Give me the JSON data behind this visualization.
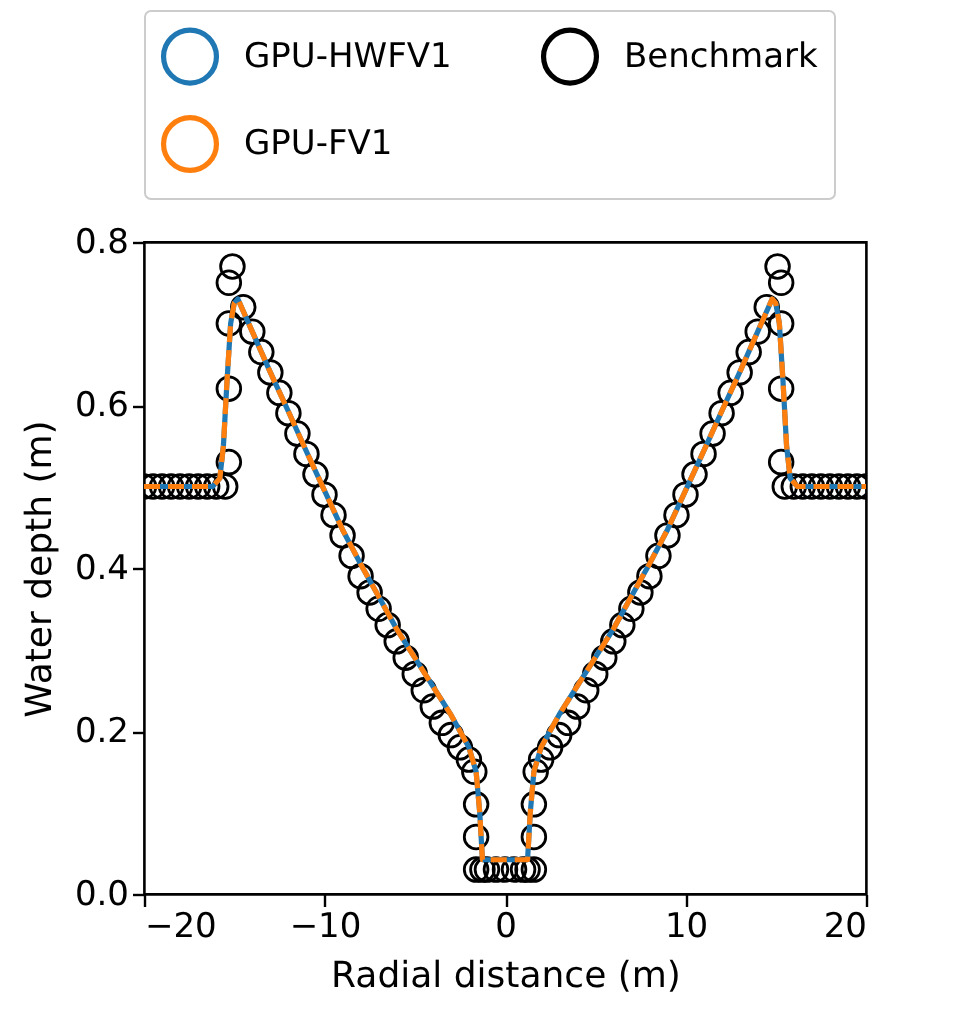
{
  "chart_data": {
    "type": "line",
    "xlabel": "Radial distance (m)",
    "ylabel": "Water depth (m)",
    "xlim": [
      -20,
      20
    ],
    "ylim": [
      0,
      0.8
    ],
    "xticks": [
      -20,
      -10,
      0,
      10,
      20
    ],
    "yticks": [
      {
        "value": 0,
        "label": "0.0"
      },
      {
        "value": 0.2,
        "label": "0.2"
      },
      {
        "value": 0.4,
        "label": "0.4"
      },
      {
        "value": 0.6,
        "label": "0.6"
      },
      {
        "value": 0.8,
        "label": "0.8"
      }
    ],
    "grid": false,
    "legend": "top",
    "series": [
      {
        "name": "GPU-HWFV1",
        "type": "line",
        "color": "#1f77b4",
        "line_style": "solid",
        "x": [
          -20,
          -16.2,
          -15.8,
          -15.6,
          -15.4,
          -15.2,
          -15,
          -14.8,
          -14,
          -13,
          -12,
          -11,
          -10,
          -9,
          -8,
          -7,
          -6,
          -5,
          -4,
          -3,
          -2.5,
          -2,
          -1.6,
          -1.4,
          -1.25,
          -1.1,
          1.1,
          1.25,
          1.4,
          1.6,
          2,
          2.5,
          3,
          4,
          5,
          6,
          7,
          8,
          9,
          10,
          11,
          12,
          13,
          14,
          14.8,
          15,
          15.2,
          15.4,
          15.6,
          15.8,
          16.2,
          20
        ],
        "values": [
          0.5,
          0.5,
          0.51,
          0.55,
          0.63,
          0.7,
          0.725,
          0.73,
          0.69,
          0.64,
          0.592,
          0.543,
          0.495,
          0.447,
          0.405,
          0.365,
          0.325,
          0.29,
          0.255,
          0.22,
          0.2,
          0.18,
          0.15,
          0.1,
          0.042,
          0.042,
          0.042,
          0.042,
          0.1,
          0.15,
          0.18,
          0.2,
          0.22,
          0.255,
          0.29,
          0.325,
          0.365,
          0.405,
          0.447,
          0.495,
          0.543,
          0.592,
          0.64,
          0.69,
          0.73,
          0.725,
          0.7,
          0.63,
          0.55,
          0.51,
          0.5,
          0.5
        ]
      },
      {
        "name": "GPU-FV1",
        "type": "line",
        "color": "#ff7f0e",
        "line_style": "dashed",
        "x": [
          -20,
          -16.2,
          -15.8,
          -15.6,
          -15.4,
          -15.2,
          -15,
          -14.8,
          -14,
          -13,
          -12,
          -11,
          -10,
          -9,
          -8,
          -7,
          -6,
          -5,
          -4,
          -3,
          -2.5,
          -2,
          -1.6,
          -1.4,
          -1.25,
          -1.1,
          1.1,
          1.25,
          1.4,
          1.6,
          2,
          2.5,
          3,
          4,
          5,
          6,
          7,
          8,
          9,
          10,
          11,
          12,
          13,
          14,
          14.8,
          15,
          15.2,
          15.4,
          15.6,
          15.8,
          16.2,
          20
        ],
        "values": [
          0.5,
          0.5,
          0.51,
          0.55,
          0.63,
          0.7,
          0.725,
          0.73,
          0.69,
          0.64,
          0.592,
          0.543,
          0.495,
          0.447,
          0.405,
          0.365,
          0.325,
          0.29,
          0.255,
          0.22,
          0.2,
          0.18,
          0.15,
          0.1,
          0.042,
          0.042,
          0.042,
          0.042,
          0.1,
          0.15,
          0.18,
          0.2,
          0.22,
          0.255,
          0.29,
          0.325,
          0.365,
          0.405,
          0.447,
          0.495,
          0.543,
          0.592,
          0.64,
          0.69,
          0.73,
          0.725,
          0.7,
          0.63,
          0.55,
          0.51,
          0.5,
          0.5
        ]
      },
      {
        "name": "Benchmark",
        "type": "scatter",
        "color": "#000000",
        "marker": "circle",
        "x": [
          -20,
          -19.5,
          -19,
          -18.5,
          -18,
          -17.5,
          -17,
          -16.5,
          -16,
          -15.5,
          -15.3,
          -15.3,
          -15.3,
          -15.3,
          -15.1,
          -14.5,
          -14,
          -13.5,
          -13,
          -12.5,
          -12,
          -11.5,
          -11,
          -10.5,
          -10,
          -9.5,
          -9,
          -8.5,
          -8,
          -7.5,
          -7,
          -6.5,
          -6,
          -5.5,
          -5,
          -4.5,
          -4,
          -3.5,
          -3,
          -2.5,
          -2,
          -1.7,
          -1.6,
          -1.6,
          -1.6,
          -1.25,
          -1,
          -0.5,
          0,
          0.5,
          1,
          1.25,
          1.6,
          1.6,
          1.6,
          1.7,
          2,
          2.5,
          3,
          3.5,
          4,
          4.5,
          5,
          5.5,
          6,
          6.5,
          7,
          7.5,
          8,
          8.5,
          9,
          9.5,
          10,
          10.5,
          11,
          11.5,
          12,
          12.5,
          13,
          13.5,
          14,
          14.5,
          15.1,
          15.3,
          15.3,
          15.3,
          15.3,
          15.5,
          16,
          16.5,
          17,
          17.5,
          18,
          18.5,
          19,
          19.5,
          20
        ],
        "values": [
          0.5,
          0.5,
          0.5,
          0.5,
          0.5,
          0.5,
          0.5,
          0.5,
          0.5,
          0.5,
          0.53,
          0.62,
          0.7,
          0.75,
          0.77,
          0.72,
          0.69,
          0.665,
          0.64,
          0.615,
          0.59,
          0.565,
          0.54,
          0.515,
          0.49,
          0.465,
          0.44,
          0.415,
          0.39,
          0.37,
          0.35,
          0.33,
          0.31,
          0.29,
          0.27,
          0.25,
          0.23,
          0.21,
          0.195,
          0.18,
          0.165,
          0.15,
          0.11,
          0.07,
          0.03,
          0.03,
          0.03,
          0.03,
          0.03,
          0.03,
          0.03,
          0.03,
          0.03,
          0.07,
          0.11,
          0.15,
          0.165,
          0.18,
          0.195,
          0.21,
          0.23,
          0.25,
          0.27,
          0.29,
          0.31,
          0.33,
          0.35,
          0.37,
          0.39,
          0.415,
          0.44,
          0.465,
          0.49,
          0.515,
          0.54,
          0.565,
          0.59,
          0.615,
          0.64,
          0.665,
          0.69,
          0.72,
          0.77,
          0.75,
          0.7,
          0.62,
          0.53,
          0.5,
          0.5,
          0.5,
          0.5,
          0.5,
          0.5,
          0.5,
          0.5,
          0.5,
          0.5
        ]
      }
    ]
  }
}
